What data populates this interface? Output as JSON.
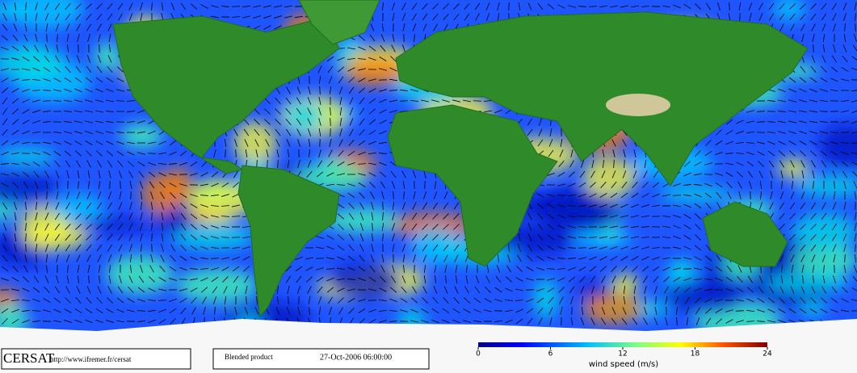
{
  "logo": "CERSAT",
  "url": "http://www.ifremer.fr/cersat",
  "product": "Blended product",
  "date": "27-Oct-2006 06:00:00",
  "colorbar": {
    "label": "wind speed (m/s)",
    "range": [
      0,
      24
    ],
    "ticks": [
      0,
      6,
      12,
      18,
      24
    ]
  }
}
